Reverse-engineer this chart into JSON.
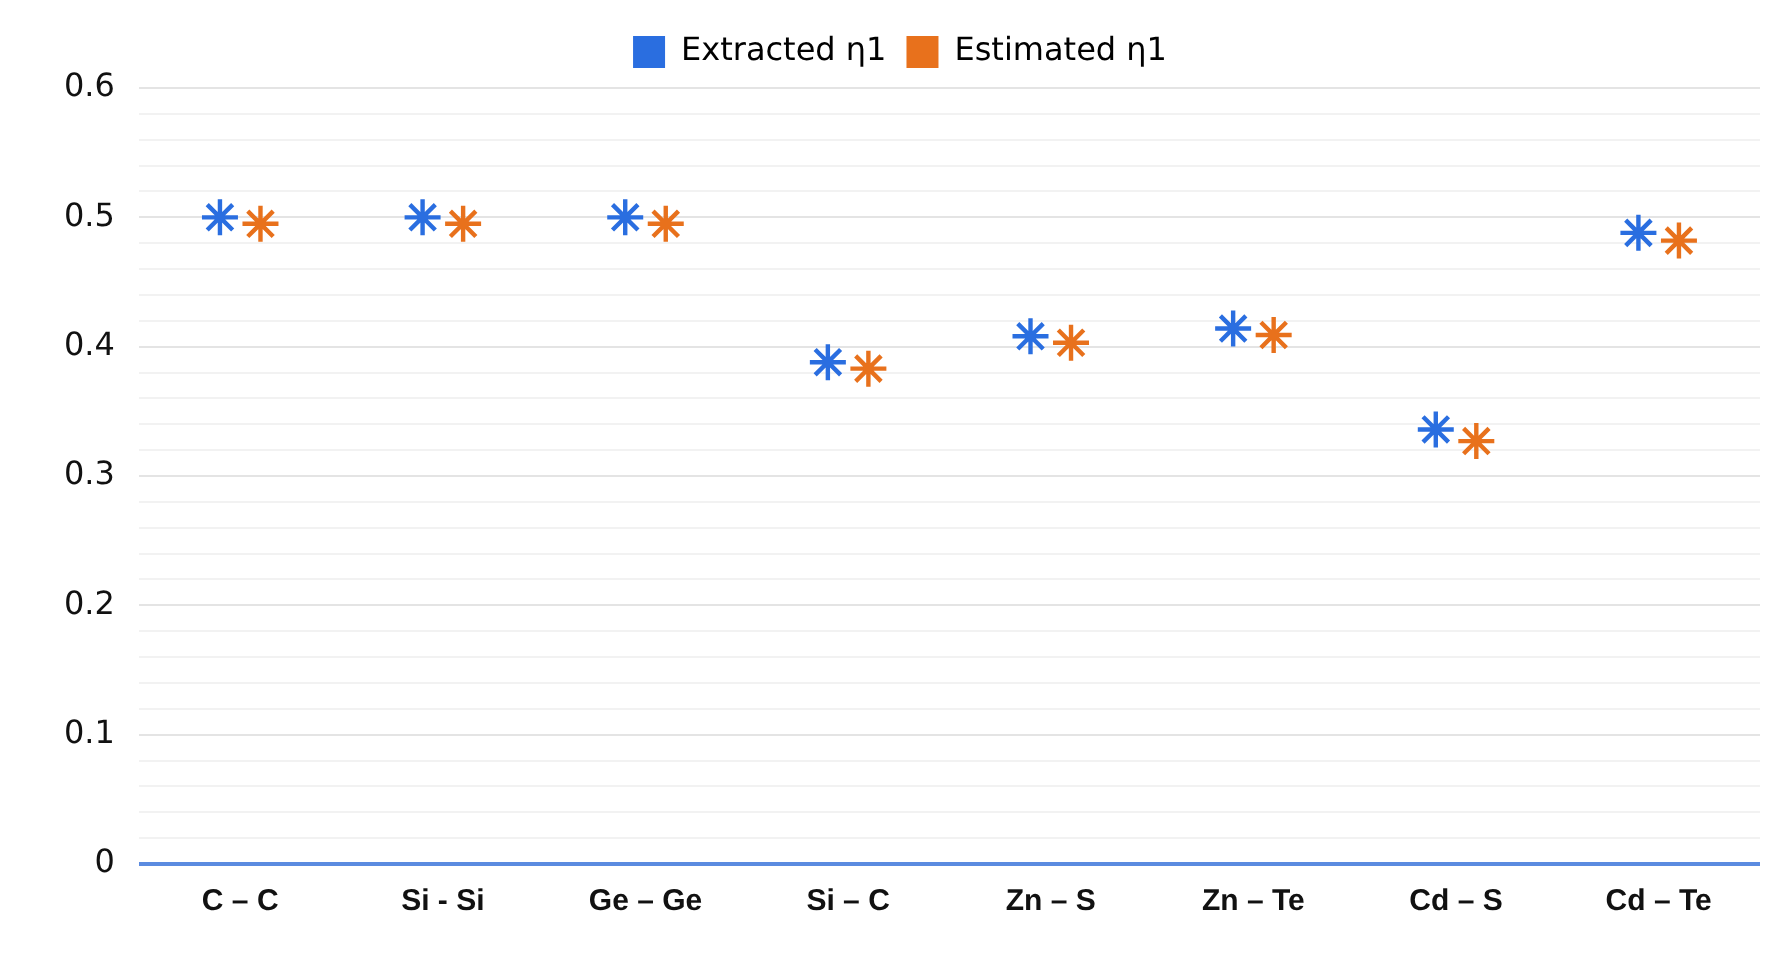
{
  "chart_data": {
    "type": "scatter",
    "categories": [
      "C – C",
      "Si - Si",
      "Ge – Ge",
      "Si – C",
      "Zn – S",
      "Zn – Te",
      "Cd – S",
      "Cd – Te"
    ],
    "series": [
      {
        "name": "Extracted η1",
        "color": "#2a6ee0",
        "values": [
          0.5,
          0.5,
          0.5,
          0.388,
          0.408,
          0.414,
          0.336,
          0.488
        ]
      },
      {
        "name": "Estimated η1",
        "color": "#e8711c",
        "values": [
          0.495,
          0.495,
          0.495,
          0.383,
          0.403,
          0.409,
          0.327,
          0.482
        ]
      }
    ],
    "ylim": [
      0,
      0.6
    ],
    "yticks": [
      0,
      0.1,
      0.2,
      0.3,
      0.4,
      0.5,
      0.6
    ],
    "grid": "y",
    "legend": "top",
    "marker": "cross"
  }
}
